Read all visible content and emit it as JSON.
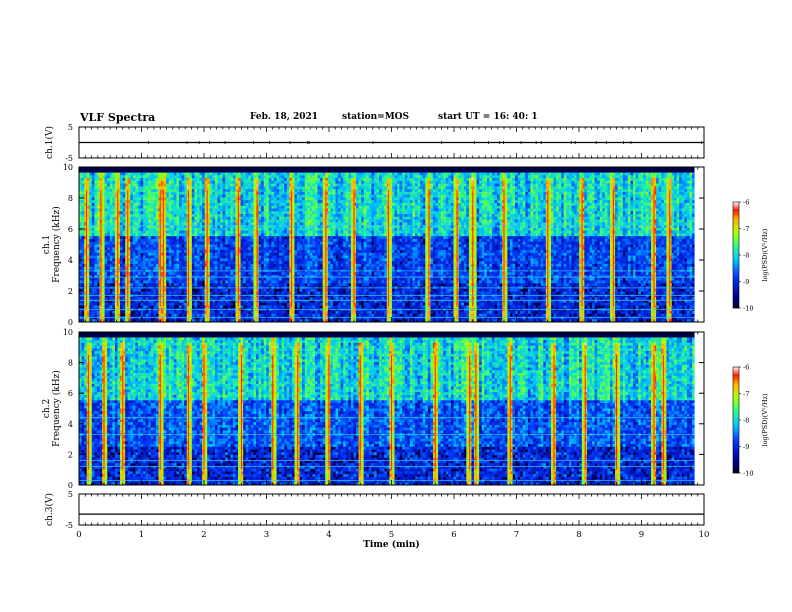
{
  "header": {
    "title": "VLF Spectra",
    "date": "Feb. 18, 2021",
    "station": "station=MOS",
    "start": "start  UT =  16: 40: 1"
  },
  "chart_data": [
    {
      "type": "line",
      "panel": "ch1-voltage",
      "ylabel": "ch.1(V)",
      "ylim": [
        -5,
        5
      ],
      "yticks": [
        "5",
        "-5"
      ],
      "x": [
        0,
        10
      ],
      "values": [
        0,
        0
      ],
      "xlim": [
        0,
        10
      ]
    },
    {
      "type": "heatmap",
      "panel": "ch1-spectrogram",
      "ylabel": "Frequency (kHz)",
      "channel_label": "ch.1",
      "ylim": [
        0,
        10
      ],
      "yticks": [
        "0",
        "2",
        "4",
        "6",
        "8",
        "10"
      ],
      "xlim": [
        0,
        9.85
      ],
      "colorbar": {
        "label": "log(PSD)(V²/Hz)",
        "range": [
          -10,
          -6
        ],
        "ticks": [
          "-6",
          "-7",
          "-8",
          "-9",
          "-10"
        ]
      },
      "strong_bursts_min": [
        0.12,
        0.35,
        0.62,
        0.78,
        1.3,
        1.35,
        1.75,
        2.05,
        2.55,
        2.85,
        3.4,
        3.95,
        4.4,
        4.95,
        5.6,
        6.05,
        6.3,
        6.8,
        7.5,
        8.05,
        8.55,
        9.2,
        9.45
      ],
      "horizontal_lines_khz": [
        0.3,
        0.8,
        1.4,
        1.7,
        2.2,
        2.9,
        3.3,
        6.2
      ]
    },
    {
      "type": "heatmap",
      "panel": "ch2-spectrogram",
      "ylabel": "Frequency (kHz)",
      "channel_label": "ch.2",
      "ylim": [
        0,
        10
      ],
      "yticks": [
        "0",
        "2",
        "4",
        "6",
        "8",
        "10"
      ],
      "xlim": [
        0,
        9.85
      ],
      "colorbar": {
        "label": "log(PSD)(V²/Hz)",
        "range": [
          -10,
          -6
        ],
        "ticks": [
          "-6",
          "-7",
          "-8",
          "-9",
          "-10"
        ]
      },
      "strong_bursts_min": [
        0.15,
        0.4,
        0.7,
        1.3,
        1.75,
        2.0,
        2.6,
        3.1,
        3.5,
        4.0,
        4.5,
        5.0,
        5.7,
        6.25,
        6.35,
        6.9,
        7.6,
        8.1,
        8.6,
        9.2,
        9.35
      ],
      "horizontal_lines_khz": [
        0.3,
        1.2,
        1.6,
        3.3,
        4.4
      ]
    },
    {
      "type": "line",
      "panel": "ch3-voltage",
      "ylabel": "ch.3(V)",
      "ylim": [
        -5,
        5
      ],
      "yticks": [
        "5",
        "-5"
      ],
      "x": [
        0,
        10
      ],
      "values": [
        -1.5,
        -1.5
      ],
      "xlim": [
        0,
        10
      ],
      "xlabel": "Time (min)",
      "xticks": [
        "0",
        "1",
        "2",
        "3",
        "4",
        "5",
        "6",
        "7",
        "8",
        "9",
        "10"
      ]
    }
  ]
}
